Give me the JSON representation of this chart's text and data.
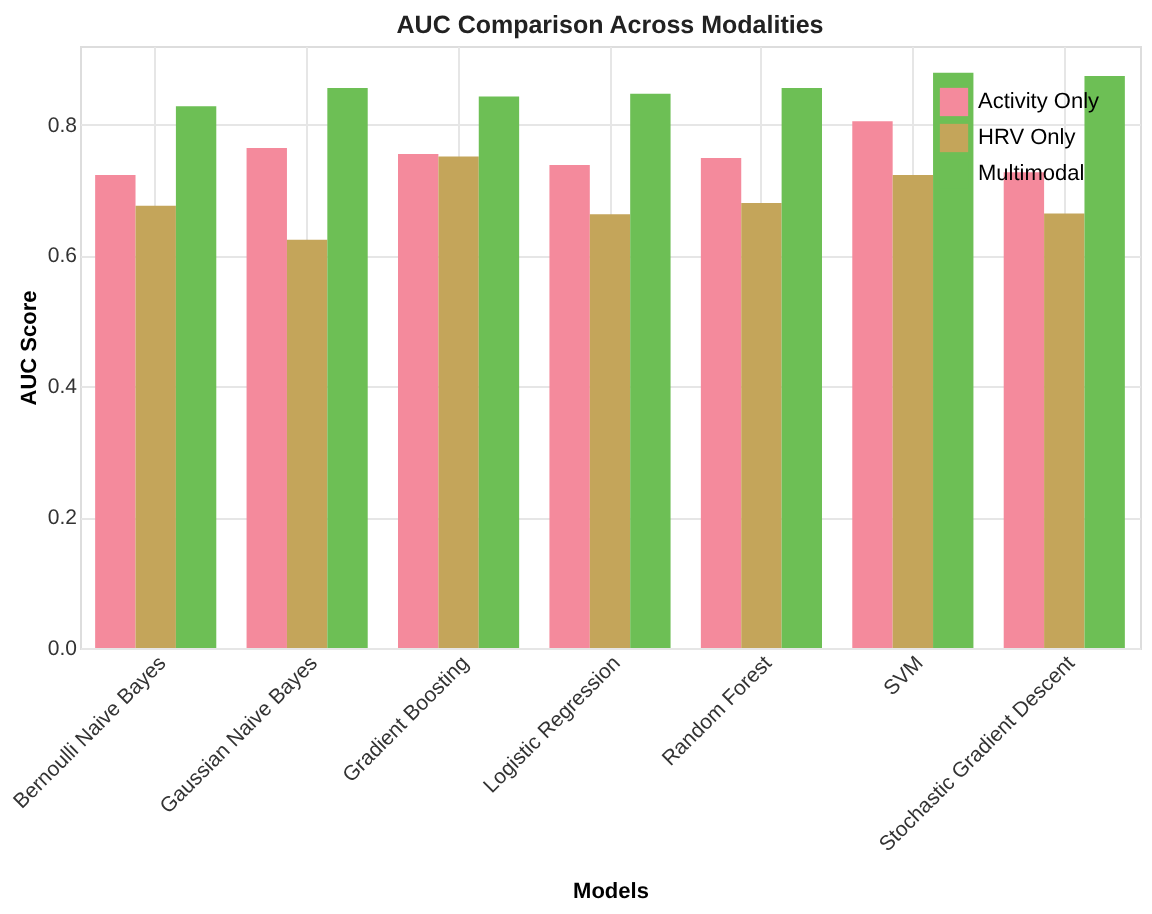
{
  "chart_data": {
    "type": "bar",
    "title": "AUC Comparison Across Modalities",
    "xlabel": "Models",
    "ylabel": "AUC Score",
    "categories": [
      "Bernoulli Naive Bayes",
      "Gaussian Naive Bayes",
      "Gradient Boosting",
      "Logistic Regression",
      "Random Forest",
      "SVM",
      "Stochastic Gradient Descent"
    ],
    "series": [
      {
        "name": "Activity Only",
        "color": "#f48a9c",
        "values": [
          0.723,
          0.764,
          0.755,
          0.738,
          0.749,
          0.805,
          0.727
        ]
      },
      {
        "name": "HRV Only",
        "color": "#c4a55a",
        "values": [
          0.676,
          0.624,
          0.751,
          0.663,
          0.68,
          0.723,
          0.664
        ]
      },
      {
        "name": "Multimodal",
        "color": "#6dbf55",
        "values": [
          0.828,
          0.856,
          0.843,
          0.847,
          0.856,
          0.879,
          0.874
        ]
      }
    ],
    "ylim": [
      0,
      0.92
    ],
    "yticks": [
      {
        "value": 0,
        "label": "0.0"
      },
      0.2,
      0.4,
      0.6,
      0.8
    ],
    "grid": true,
    "legend": "top right"
  }
}
